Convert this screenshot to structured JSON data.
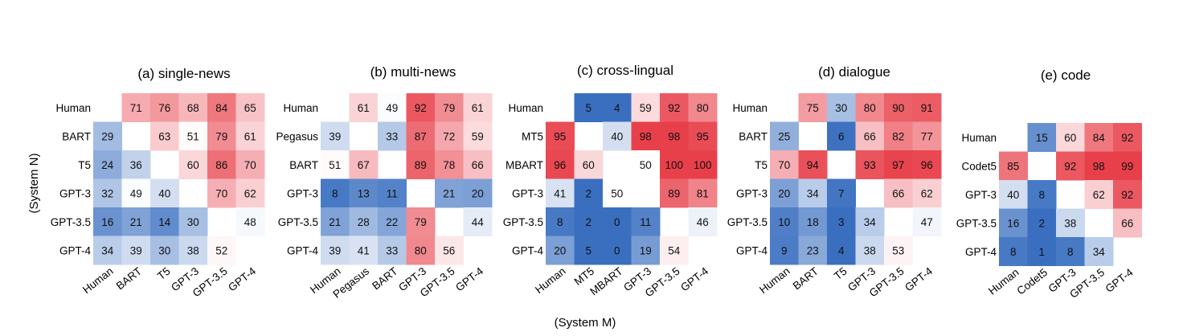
{
  "figure": {
    "ylabel": "(System N)",
    "xlabel": "(System M)"
  },
  "chart_data": [
    {
      "type": "heatmap",
      "title": "(a) single-news",
      "rows": [
        "Human",
        "BART",
        "T5",
        "GPT-3",
        "GPT-3.5",
        "GPT-4"
      ],
      "cols": [
        "Human",
        "BART",
        "T5",
        "GPT-3",
        "GPT-3.5",
        "GPT-4"
      ],
      "values": [
        [
          null,
          71,
          76,
          68,
          84,
          65
        ],
        [
          29,
          null,
          63,
          51,
          79,
          61
        ],
        [
          24,
          36,
          null,
          60,
          86,
          70
        ],
        [
          32,
          49,
          40,
          null,
          70,
          62
        ],
        [
          16,
          21,
          14,
          30,
          null,
          48
        ],
        [
          34,
          39,
          30,
          38,
          52,
          null
        ]
      ],
      "colors": {
        "low": "#3a6fc0",
        "mid": "#ffffff",
        "high": "#e8404a"
      }
    },
    {
      "type": "heatmap",
      "title": "(b) multi-news",
      "rows": [
        "Human",
        "Pegasus",
        "BART",
        "GPT-3",
        "GPT-3.5",
        "GPT-4"
      ],
      "cols": [
        "Human",
        "Pegasus",
        "BART",
        "GPT-3",
        "GPT-3.5",
        "GPT-4"
      ],
      "values": [
        [
          null,
          61,
          49,
          92,
          79,
          61
        ],
        [
          39,
          null,
          33,
          87,
          72,
          59
        ],
        [
          51,
          67,
          null,
          89,
          78,
          66
        ],
        [
          8,
          13,
          11,
          null,
          21,
          20
        ],
        [
          21,
          28,
          22,
          79,
          null,
          44
        ],
        [
          39,
          41,
          33,
          80,
          56,
          null
        ]
      ],
      "colors": {
        "low": "#3a6fc0",
        "mid": "#ffffff",
        "high": "#e8404a"
      }
    },
    {
      "type": "heatmap",
      "title": "(c) cross-lingual",
      "rows": [
        "Human",
        "MT5",
        "MBART",
        "GPT-3",
        "GPT-3.5",
        "GPT-4"
      ],
      "cols": [
        "Human",
        "MT5",
        "MBART",
        "GPT-3",
        "GPT-3.5",
        "GPT-4"
      ],
      "values": [
        [
          null,
          5,
          4,
          59,
          92,
          80
        ],
        [
          95,
          null,
          40,
          98,
          98,
          95
        ],
        [
          96,
          60,
          null,
          50,
          100,
          100
        ],
        [
          41,
          2,
          50,
          null,
          89,
          81
        ],
        [
          8,
          2,
          0,
          11,
          null,
          46
        ],
        [
          20,
          5,
          0,
          19,
          54,
          null
        ]
      ],
      "colors": {
        "low": "#3a6fc0",
        "mid": "#ffffff",
        "high": "#e8404a"
      }
    },
    {
      "type": "heatmap",
      "title": "(d) dialogue",
      "rows": [
        "Human",
        "BART",
        "T5",
        "GPT-3",
        "GPT-3.5",
        "GPT-4"
      ],
      "cols": [
        "Human",
        "BART",
        "T5",
        "GPT-3",
        "GPT-3.5",
        "GPT-4"
      ],
      "values": [
        [
          null,
          75,
          30,
          80,
          90,
          91
        ],
        [
          25,
          null,
          6,
          66,
          82,
          77
        ],
        [
          70,
          94,
          null,
          93,
          97,
          96
        ],
        [
          20,
          34,
          7,
          null,
          66,
          62
        ],
        [
          10,
          18,
          3,
          34,
          null,
          47
        ],
        [
          9,
          23,
          4,
          38,
          53,
          null
        ]
      ],
      "colors": {
        "low": "#3a6fc0",
        "mid": "#ffffff",
        "high": "#e8404a"
      }
    },
    {
      "type": "heatmap",
      "title": "(e) code",
      "rows": [
        "Human",
        "Codet5",
        "GPT-3",
        "GPT-3.5",
        "GPT-4"
      ],
      "cols": [
        "Human",
        "Codet5",
        "GPT-3",
        "GPT-3.5",
        "GPT-4"
      ],
      "values": [
        [
          null,
          15,
          60,
          84,
          92
        ],
        [
          85,
          null,
          92,
          98,
          99
        ],
        [
          40,
          8,
          null,
          62,
          92
        ],
        [
          16,
          2,
          38,
          null,
          66
        ],
        [
          8,
          1,
          8,
          34,
          null
        ]
      ],
      "colors": {
        "low": "#3a6fc0",
        "mid": "#ffffff",
        "high": "#e8404a"
      }
    }
  ]
}
